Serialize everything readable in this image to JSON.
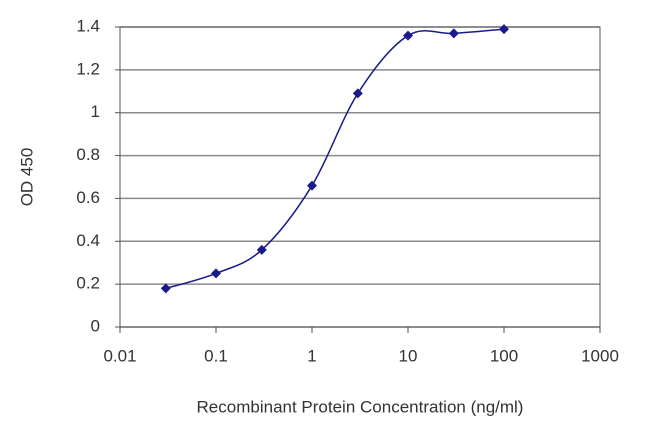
{
  "chart_data": {
    "type": "line",
    "x_label": "Recombinant Protein Concentration (ng/ml)",
    "y_label": "OD 450",
    "x_scale": "log",
    "xlim": [
      0.01,
      1000
    ],
    "xticks": [
      0.01,
      0.1,
      1,
      10,
      100,
      1000
    ],
    "ylim": [
      0,
      1.4
    ],
    "yticks": [
      0,
      0.2,
      0.4,
      0.6,
      0.8,
      1,
      1.2,
      1.4
    ],
    "grid": true,
    "series": [
      {
        "color": "#1a1a8c",
        "marker": "diamond",
        "x": [
          0.03,
          0.1,
          0.3,
          1,
          3,
          10,
          30,
          100
        ],
        "values": [
          0.18,
          0.25,
          0.36,
          0.66,
          1.09,
          1.36,
          1.37,
          1.39
        ]
      }
    ]
  }
}
